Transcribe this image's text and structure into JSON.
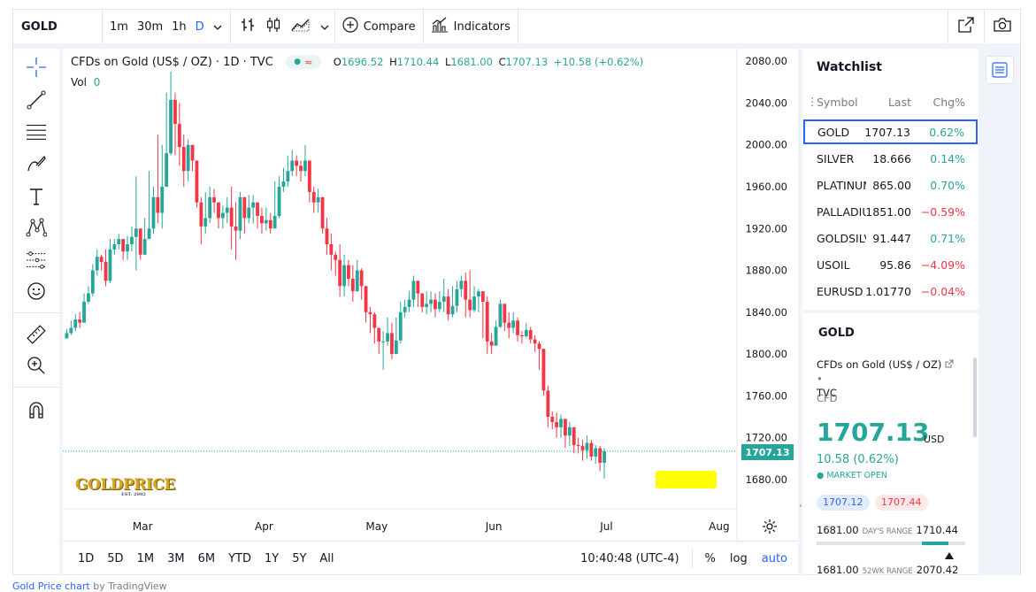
{
  "topbar": {
    "symbol": "GOLD",
    "timeframes": [
      "1m",
      "30m",
      "1h",
      "D"
    ],
    "active_timeframe": "D",
    "compare_label": "Compare",
    "indicators_label": "Indicators"
  },
  "legend": {
    "title": "CFDs on Gold (US$ / OZ) · 1D · TVC",
    "o_label": "O",
    "o": "1696.52",
    "h_label": "H",
    "h": "1710.44",
    "l_label": "L",
    "l": "1681.00",
    "c_label": "C",
    "c": "1707.13",
    "change": "+10.58 (+0.62%)",
    "vol_label": "Vol",
    "vol_value": "0"
  },
  "price_tag": "1707.13",
  "logo": {
    "text": "GOLDPRICE",
    "sub": "EST. 2002"
  },
  "bottombar": {
    "ranges": [
      "1D",
      "5D",
      "1M",
      "3M",
      "6M",
      "YTD",
      "1Y",
      "5Y",
      "All"
    ],
    "time": "10:40:48 (UTC-4)",
    "percent": "%",
    "log": "log",
    "auto": "auto"
  },
  "watchlist": {
    "title": "Watchlist",
    "columns": {
      "symbol": "Symbol",
      "last": "Last",
      "chg": "Chg%"
    },
    "rows": [
      {
        "symbol": "GOLD",
        "last": "1707.13",
        "chg": "0.62%",
        "dir": "up"
      },
      {
        "symbol": "SILVER",
        "last": "18.666",
        "chg": "0.14%",
        "dir": "up"
      },
      {
        "symbol": "PLATINUM",
        "last": "865.00",
        "chg": "0.70%",
        "dir": "up"
      },
      {
        "symbol": "PALLADIUM",
        "last": "1851.00",
        "chg": "−0.59%",
        "dir": "down"
      },
      {
        "symbol": "GOLDSILVER",
        "last": "91.447",
        "chg": "0.71%",
        "dir": "up"
      },
      {
        "symbol": "USOIL",
        "last": "95.86",
        "chg": "−4.09%",
        "dir": "down"
      },
      {
        "symbol": "EURUSD",
        "last": "1.01770",
        "chg": "−0.04%",
        "dir": "down"
      }
    ]
  },
  "detail": {
    "symbol": "GOLD",
    "description": "CFDs on Gold (US$ / OZ)",
    "exchange": "TVC",
    "type": "CFD",
    "price": "1707.13",
    "currency": "USD",
    "change": "10.58 (0.62%)",
    "status": "MARKET OPEN",
    "bid": "1707.12",
    "ask": "1707.44",
    "days_range_low": "1681.00",
    "days_range_label": "DAY'S RANGE",
    "days_range_high": "1710.44",
    "wk_low": "1681.00",
    "wk_label": "52WK RANGE",
    "wk_high": "2070.42"
  },
  "footer": {
    "link": "Gold Price chart",
    "by": " by TradingView"
  },
  "colors": {
    "up": "#26a69a",
    "down": "#f23645",
    "accent": "#2962ff"
  },
  "chart_data": {
    "type": "candlestick",
    "x_labels": [
      "Mar",
      "Apr",
      "May",
      "Jun",
      "Jul",
      "Aug"
    ],
    "y_ticks": [
      1680,
      1720,
      1760,
      1800,
      1840,
      1880,
      1920,
      1960,
      2000,
      2040,
      2080
    ],
    "ylim": [
      1652,
      2092
    ],
    "last_price": 1707.13,
    "closes": [
      1820,
      1825,
      1833,
      1830,
      1850,
      1858,
      1880,
      1893,
      1888,
      1870,
      1900,
      1905,
      1910,
      1898,
      1905,
      1912,
      1920,
      1895,
      1910,
      1920,
      1950,
      1935,
      1960,
      1992,
      2043,
      2020,
      1998,
      1975,
      2000,
      1985,
      1945,
      1922,
      1930,
      1950,
      1945,
      1930,
      1935,
      1940,
      1922,
      1918,
      1950,
      1930,
      1940,
      1945,
      1932,
      1925,
      1928,
      1920,
      1932,
      1960,
      1965,
      1975,
      1985,
      1980,
      1975,
      1985,
      1955,
      1945,
      1950,
      1920,
      1905,
      1895,
      1890,
      1865,
      1885,
      1872,
      1860,
      1880,
      1865,
      1840,
      1838,
      1825,
      1812,
      1812,
      1820,
      1800,
      1813,
      1840,
      1845,
      1852,
      1870,
      1858,
      1845,
      1848,
      1852,
      1843,
      1850,
      1855,
      1838,
      1846,
      1862,
      1870,
      1852,
      1842,
      1855,
      1860,
      1850,
      1812,
      1808,
      1826,
      1848,
      1830,
      1825,
      1832,
      1818,
      1817,
      1823,
      1814,
      1810,
      1805,
      1765,
      1740,
      1735,
      1730,
      1738,
      1722,
      1730,
      1713,
      1712,
      1708,
      1715,
      1702,
      1710,
      1696,
      1707
    ],
    "highs": [
      1824,
      1832,
      1838,
      1840,
      1858,
      1865,
      1886,
      1900,
      1895,
      1900,
      1910,
      1910,
      1915,
      1908,
      1913,
      1922,
      1970,
      1912,
      1930,
      1975,
      1960,
      2010,
      2000,
      2050,
      2070,
      2050,
      2040,
      2010,
      2005,
      2000,
      1965,
      1950,
      1955,
      1960,
      1958,
      1945,
      1942,
      1950,
      1960,
      1945,
      1955,
      1950,
      1952,
      1952,
      1945,
      1940,
      1940,
      1935,
      1965,
      1970,
      1978,
      1990,
      1995,
      1990,
      1985,
      2000,
      1978,
      1960,
      1958,
      1945,
      1930,
      1915,
      1898,
      1905,
      1895,
      1890,
      1885,
      1890,
      1882,
      1865,
      1845,
      1840,
      1825,
      1822,
      1835,
      1830,
      1835,
      1850,
      1852,
      1860,
      1875,
      1870,
      1858,
      1860,
      1860,
      1858,
      1860,
      1872,
      1862,
      1865,
      1870,
      1875,
      1878,
      1880,
      1865,
      1862,
      1858,
      1855,
      1820,
      1832,
      1852,
      1846,
      1840,
      1840,
      1835,
      1822,
      1830,
      1826,
      1818,
      1812,
      1790,
      1770,
      1745,
      1744,
      1742,
      1735,
      1735,
      1728,
      1720,
      1718,
      1722,
      1718,
      1713,
      1712,
      1710
    ],
    "lows": [
      1815,
      1818,
      1822,
      1825,
      1835,
      1848,
      1855,
      1875,
      1880,
      1865,
      1868,
      1895,
      1900,
      1890,
      1890,
      1898,
      1880,
      1890,
      1905,
      1910,
      1915,
      1925,
      1920,
      1960,
      1990,
      1990,
      1980,
      1960,
      1965,
      1975,
      1940,
      1905,
      1915,
      1925,
      1935,
      1920,
      1920,
      1925,
      1900,
      1890,
      1910,
      1915,
      1925,
      1925,
      1920,
      1915,
      1918,
      1915,
      1920,
      1930,
      1955,
      1960,
      1970,
      1970,
      1965,
      1970,
      1945,
      1935,
      1935,
      1915,
      1895,
      1880,
      1875,
      1855,
      1855,
      1865,
      1850,
      1860,
      1852,
      1830,
      1820,
      1810,
      1800,
      1785,
      1808,
      1795,
      1800,
      1810,
      1835,
      1840,
      1845,
      1845,
      1840,
      1838,
      1840,
      1835,
      1840,
      1840,
      1832,
      1835,
      1840,
      1855,
      1835,
      1835,
      1840,
      1840,
      1815,
      1800,
      1800,
      1808,
      1825,
      1822,
      1815,
      1820,
      1812,
      1810,
      1815,
      1810,
      1802,
      1785,
      1760,
      1730,
      1728,
      1720,
      1720,
      1710,
      1712,
      1705,
      1705,
      1698,
      1700,
      1698,
      1695,
      1688,
      1681
    ]
  }
}
